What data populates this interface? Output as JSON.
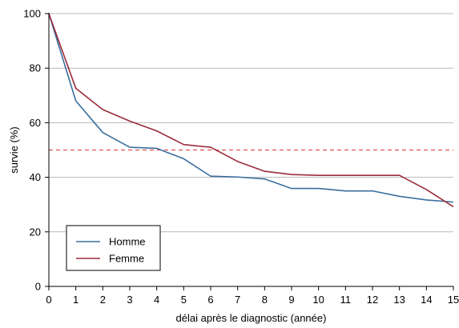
{
  "chart_data": {
    "type": "line",
    "title": "",
    "xlabel": "délai après le diagnostic (année)",
    "ylabel": "survie (%)",
    "xlim": [
      0,
      15
    ],
    "ylim": [
      0,
      100
    ],
    "xticks": [
      0,
      1,
      2,
      3,
      4,
      5,
      6,
      7,
      8,
      9,
      10,
      11,
      12,
      13,
      14,
      15
    ],
    "yticks": [
      0,
      20,
      40,
      60,
      80,
      100
    ],
    "grid": "horizontal",
    "legend_position": "bottom-left",
    "x": [
      0,
      1,
      2,
      3,
      4,
      5,
      6,
      7,
      8,
      9,
      10,
      11,
      12,
      13,
      14,
      15
    ],
    "series": [
      {
        "name": "Homme",
        "color": "#3b6e9e",
        "values": [
          100,
          68,
          56.4,
          51,
          50.6,
          46.8,
          40.4,
          40.1,
          39.4,
          35.9,
          35.9,
          35.0,
          35.0,
          33.0,
          31.7,
          30.9
        ]
      },
      {
        "name": "Femme",
        "color": "#9b2c3a",
        "values": [
          100,
          72.6,
          64.8,
          60.6,
          57.0,
          52.0,
          51.0,
          45.8,
          42.2,
          41.0,
          40.7,
          40.7,
          40.7,
          40.7,
          35.5,
          29.2
        ]
      }
    ],
    "reference_line": {
      "y": 50,
      "color": "#e03030",
      "style": "dashed"
    }
  }
}
